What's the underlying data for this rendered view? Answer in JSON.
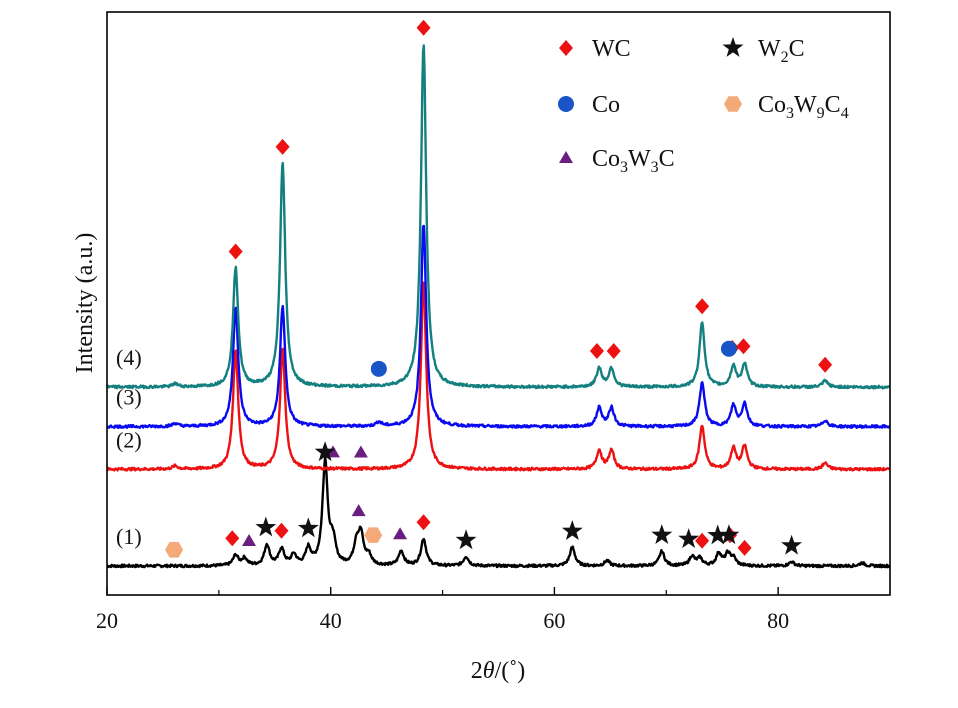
{
  "chart_data": {
    "type": "line",
    "title": "",
    "xlabel": "2θ/(˚)",
    "ylabel": "Intensity (a.u.)",
    "xlim": [
      20,
      90
    ],
    "xticks": [
      "20",
      "40",
      "60",
      "80"
    ],
    "grid": false,
    "legend_position": "top-right",
    "legend": [
      {
        "label": "WC",
        "marker": "diamond",
        "color": "#ee1111"
      },
      {
        "label": "W2C",
        "marker": "star",
        "color": "#111111"
      },
      {
        "label": "Co",
        "marker": "circle",
        "color": "#1a55c8"
      },
      {
        "label": "Co3W9C4",
        "marker": "hexagon",
        "color": "#f5a878"
      },
      {
        "label": "Co3W3C",
        "marker": "triangle",
        "color": "#6a1e80"
      }
    ],
    "series": [
      {
        "name": "(1)",
        "color": "#000000",
        "baseline": 0.0,
        "peaks": [
          [
            31.5,
            0.1
          ],
          [
            32.3,
            0.07
          ],
          [
            34.3,
            0.2
          ],
          [
            35.6,
            0.16
          ],
          [
            36.7,
            0.1
          ],
          [
            38.0,
            0.16
          ],
          [
            39.5,
            1.0
          ],
          [
            40.2,
            0.22
          ],
          [
            42.3,
            0.2
          ],
          [
            42.7,
            0.28
          ],
          [
            43.4,
            0.09
          ],
          [
            46.3,
            0.14
          ],
          [
            48.3,
            0.26
          ],
          [
            52.1,
            0.09
          ],
          [
            61.6,
            0.18
          ],
          [
            64.7,
            0.05
          ],
          [
            69.6,
            0.14
          ],
          [
            72.3,
            0.09
          ],
          [
            73.0,
            0.07
          ],
          [
            74.7,
            0.12
          ],
          [
            75.5,
            0.11
          ],
          [
            76.0,
            0.07
          ],
          [
            81.2,
            0.04
          ],
          [
            87.5,
            0.03
          ]
        ]
      },
      {
        "name": "(2)",
        "color": "#ee1111",
        "baseline": 0.93,
        "peaks": [
          [
            31.5,
            1.14
          ],
          [
            35.7,
            1.15
          ],
          [
            48.3,
            1.8
          ],
          [
            64.0,
            0.18
          ],
          [
            65.1,
            0.18
          ],
          [
            73.2,
            0.42
          ],
          [
            76.0,
            0.2
          ],
          [
            77.0,
            0.22
          ],
          [
            84.2,
            0.06
          ],
          [
            26.1,
            0.03
          ]
        ]
      },
      {
        "name": "(3)",
        "color": "#0a0af0",
        "baseline": 1.34,
        "peaks": [
          [
            31.5,
            1.15
          ],
          [
            35.7,
            1.15
          ],
          [
            48.3,
            1.95
          ],
          [
            64.0,
            0.18
          ],
          [
            65.1,
            0.18
          ],
          [
            73.2,
            0.42
          ],
          [
            76.0,
            0.2
          ],
          [
            77.0,
            0.22
          ],
          [
            84.2,
            0.06
          ],
          [
            44.3,
            0.04
          ],
          [
            26.1,
            0.03
          ]
        ]
      },
      {
        "name": "(4)",
        "color": "#147f7f",
        "baseline": 1.72,
        "peaks": [
          [
            31.5,
            1.14
          ],
          [
            35.7,
            2.15
          ],
          [
            48.3,
            3.3
          ],
          [
            64.0,
            0.18
          ],
          [
            65.1,
            0.18
          ],
          [
            73.2,
            0.62
          ],
          [
            76.0,
            0.2
          ],
          [
            77.0,
            0.22
          ],
          [
            84.2,
            0.06
          ],
          [
            26.1,
            0.03
          ]
        ]
      }
    ],
    "phase_markers": [
      {
        "phase": "WC",
        "series": "(4)",
        "x": [
          31.5,
          35.7,
          48.3,
          63.8,
          65.3,
          73.2,
          75.9,
          76.9,
          84.2
        ]
      },
      {
        "phase": "Co",
        "series": "(4)",
        "x": [
          44.3,
          75.6
        ]
      },
      {
        "phase": "Co3W3C",
        "series": "(2)",
        "x": [
          40.2,
          42.7
        ]
      },
      {
        "phase": "W2C",
        "series": "(2)",
        "x": [
          39.5
        ]
      },
      {
        "phase": "WC",
        "series": "(1)",
        "x": [
          31.2,
          35.6,
          48.3,
          73.2,
          75.7,
          77.0
        ]
      },
      {
        "phase": "W2C",
        "series": "(1)",
        "x": [
          34.2,
          38.0,
          52.1,
          61.6,
          69.6,
          72.0,
          74.6,
          75.6,
          81.2
        ]
      },
      {
        "phase": "Co3W3C",
        "series": "(1)",
        "x": [
          32.7,
          42.5,
          46.2
        ]
      },
      {
        "phase": "Co3W9C4",
        "series": "(1)",
        "x": [
          26.0,
          43.8
        ]
      }
    ]
  }
}
